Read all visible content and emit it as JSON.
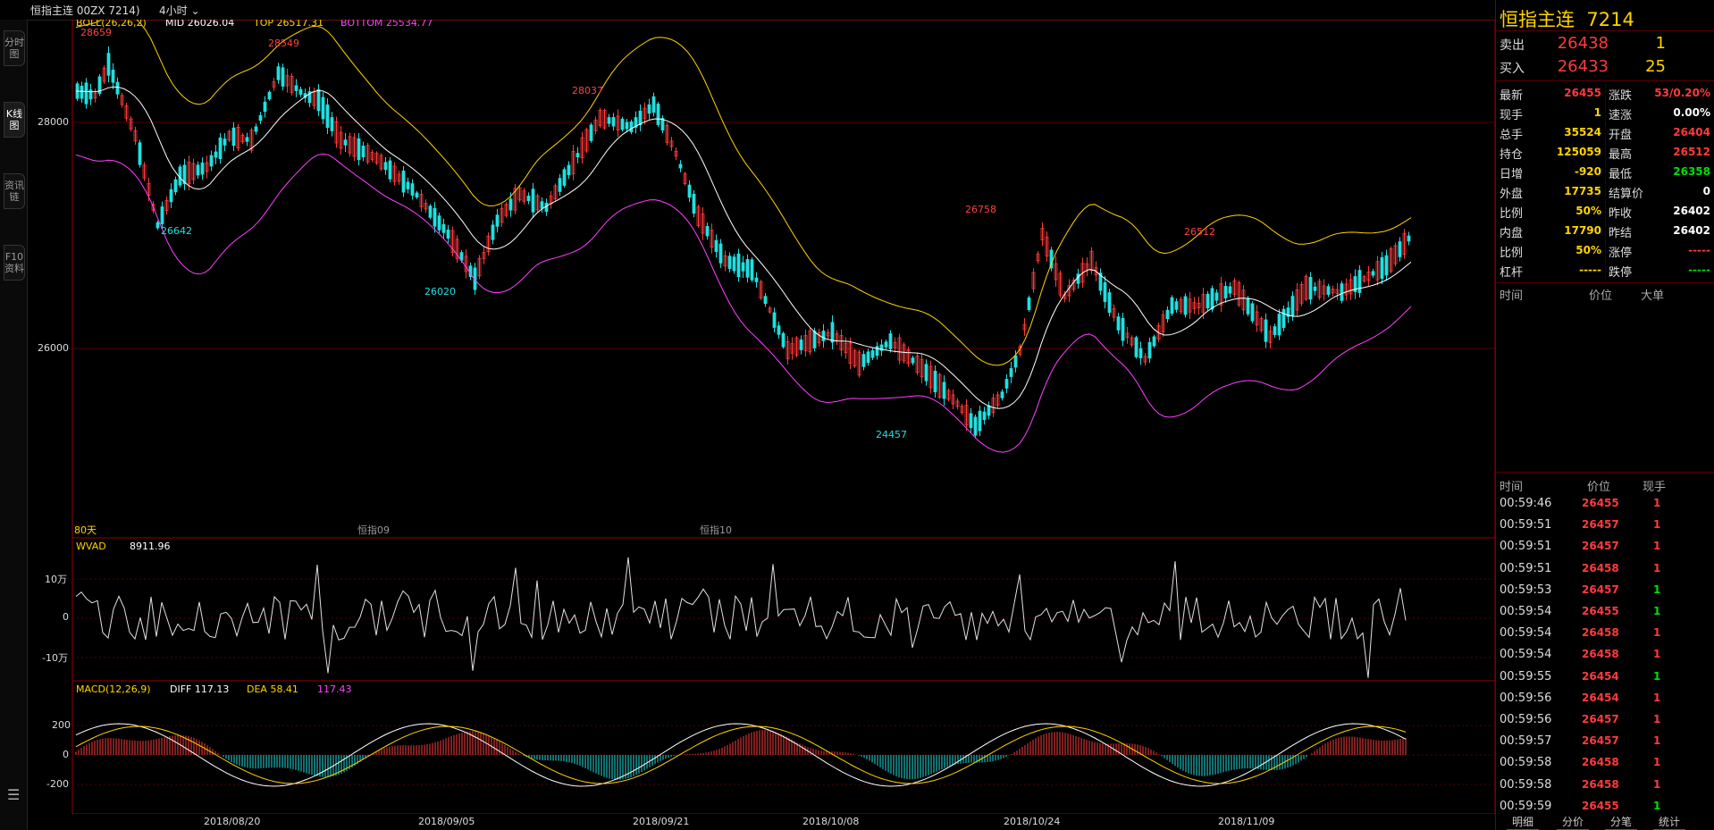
{
  "topbar": {
    "symbol_text": "恒指主连 00ZX 7214)",
    "period": "4小时"
  },
  "left_tabs": [
    {
      "label": "分时图",
      "active": false
    },
    {
      "label": "K线图",
      "active": true
    },
    {
      "label": "资讯链",
      "active": false
    },
    {
      "label": "F10资料",
      "active": false
    }
  ],
  "main_chart": {
    "indicator_name": "BOLL(26,26,2)",
    "mid_label": "MID 26026.04",
    "top_label": "TOP 26517.31",
    "bottom_label": "BOTTOM 25534.77",
    "y_ticks": [
      "28000",
      "26000"
    ],
    "days_label": "80天",
    "contract_labels": [
      "恒指09",
      "恒指10"
    ],
    "annotations": [
      {
        "text": "28659",
        "color": "#ff4040"
      },
      {
        "text": "28549",
        "color": "#ff4040"
      },
      {
        "text": "26642",
        "color": "#20e0e0"
      },
      {
        "text": "26020",
        "color": "#20e0e0"
      },
      {
        "text": "28037",
        "color": "#ff4040"
      },
      {
        "text": "24457",
        "color": "#20e0e0"
      },
      {
        "text": "26758",
        "color": "#ff4040"
      },
      {
        "text": "26512",
        "color": "#ff4040"
      }
    ]
  },
  "wvad_panel": {
    "indicator_name": "WVAD",
    "value": "8911.96",
    "y_ticks": [
      "10万",
      "0",
      "-10万"
    ]
  },
  "macd_panel": {
    "indicator_name": "MACD(12,26,9)",
    "diff_label": "DIFF 117.13",
    "dea_label": "DEA 58.41",
    "macd_value": "117.43",
    "y_ticks": [
      "200",
      "0",
      "-200"
    ]
  },
  "x_axis_dates": [
    "2018/08/20",
    "2018/09/05",
    "2018/09/21",
    "2018/10/08",
    "2018/10/24",
    "2018/11/09"
  ],
  "quote_panel": {
    "title": "恒指主连",
    "code": "7214",
    "ask": {
      "label": "卖出",
      "price": "26438",
      "qty": "1"
    },
    "bid": {
      "label": "买入",
      "price": "26433",
      "qty": "25"
    },
    "stats": [
      {
        "l1": "最新",
        "v1": "26455",
        "c1": "red",
        "l2": "涨跌",
        "v2": "53/0.20%",
        "c2": "red"
      },
      {
        "l1": "现手",
        "v1": "1",
        "c1": "yel",
        "l2": "速涨",
        "v2": "0.00%",
        "c2": "wht"
      },
      {
        "l1": "总手",
        "v1": "35524",
        "c1": "yel",
        "l2": "开盘",
        "v2": "26404",
        "c2": "red"
      },
      {
        "l1": "持仓",
        "v1": "125059",
        "c1": "yel",
        "l2": "最高",
        "v2": "26512",
        "c2": "red"
      },
      {
        "l1": "日增",
        "v1": "-920",
        "c1": "yel",
        "l2": "最低",
        "v2": "26358",
        "c2": "grn"
      },
      {
        "l1": "外盘",
        "v1": "17735",
        "c1": "yel",
        "l2": "结算价",
        "v2": "0",
        "c2": "wht"
      },
      {
        "l1": "比例",
        "v1": "50%",
        "c1": "yel",
        "l2": "昨收",
        "v2": "26402",
        "c2": "wht"
      },
      {
        "l1": "内盘",
        "v1": "17790",
        "c1": "yel",
        "l2": "昨结",
        "v2": "26402",
        "c2": "wht"
      },
      {
        "l1": "比例",
        "v1": "50%",
        "c1": "yel",
        "l2": "涨停",
        "v2": "-----",
        "c2": "red"
      },
      {
        "l1": "杠杆",
        "v1": "-----",
        "c1": "yel",
        "l2": "跌停",
        "v2": "-----",
        "c2": "grn"
      }
    ],
    "big_order_headers": [
      "时间",
      "价位",
      "大单"
    ],
    "tick_headers": [
      "时间",
      "价位",
      "现手"
    ],
    "ticks": [
      {
        "time": "00:59:46",
        "price": "26455",
        "qty": "1",
        "qc": "red"
      },
      {
        "time": "00:59:51",
        "price": "26457",
        "qty": "1",
        "qc": "red"
      },
      {
        "time": "00:59:51",
        "price": "26457",
        "qty": "1",
        "qc": "red"
      },
      {
        "time": "00:59:51",
        "price": "26458",
        "qty": "1",
        "qc": "red"
      },
      {
        "time": "00:59:53",
        "price": "26457",
        "qty": "1",
        "qc": "grn"
      },
      {
        "time": "00:59:54",
        "price": "26455",
        "qty": "1",
        "qc": "grn"
      },
      {
        "time": "00:59:54",
        "price": "26458",
        "qty": "1",
        "qc": "red"
      },
      {
        "time": "00:59:54",
        "price": "26458",
        "qty": "1",
        "qc": "red"
      },
      {
        "time": "00:59:55",
        "price": "26454",
        "qty": "1",
        "qc": "grn"
      },
      {
        "time": "00:59:56",
        "price": "26454",
        "qty": "1",
        "qc": "red"
      },
      {
        "time": "00:59:56",
        "price": "26457",
        "qty": "1",
        "qc": "red"
      },
      {
        "time": "00:59:57",
        "price": "26457",
        "qty": "1",
        "qc": "red"
      },
      {
        "time": "00:59:58",
        "price": "26458",
        "qty": "1",
        "qc": "red"
      },
      {
        "time": "00:59:58",
        "price": "26458",
        "qty": "1",
        "qc": "red"
      },
      {
        "time": "00:59:59",
        "price": "26455",
        "qty": "1",
        "qc": "grn"
      }
    ],
    "bottom_tabs": [
      "明细",
      "分价",
      "分笔",
      "统计"
    ]
  }
}
